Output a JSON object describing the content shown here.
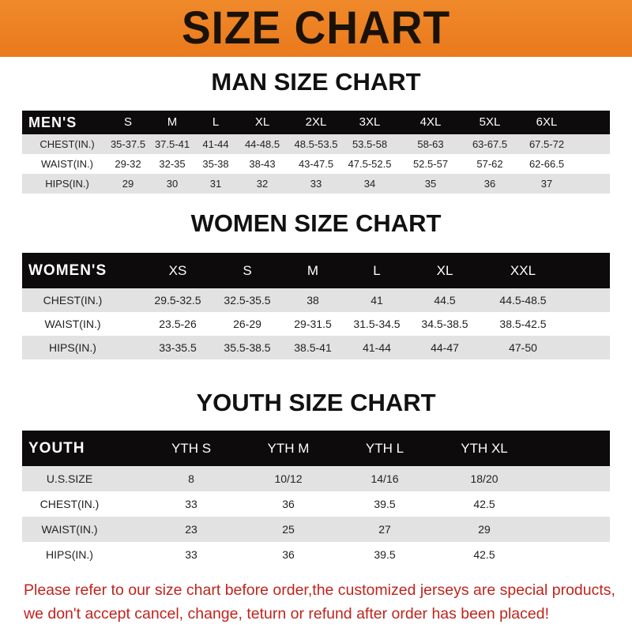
{
  "banner": {
    "title": "SIZE CHART",
    "color": "#ee8424"
  },
  "men": {
    "title": "MAN SIZE CHART",
    "header": [
      "MEN'S",
      "S",
      "M",
      "L",
      "XL",
      "2XL",
      "3XL",
      "4XL",
      "5XL",
      "6XL"
    ],
    "rows": [
      [
        "CHEST(IN.)",
        "35-37.5",
        "37.5-41",
        "41-44",
        "44-48.5",
        "48.5-53.5",
        "53.5-58",
        "58-63",
        "63-67.5",
        "67.5-72"
      ],
      [
        "WAIST(IN.)",
        "29-32",
        "32-35",
        "35-38",
        "38-43",
        "43-47.5",
        "47.5-52.5",
        "52.5-57",
        "57-62",
        "62-66.5"
      ],
      [
        "HIPS(IN.)",
        "29",
        "30",
        "31",
        "32",
        "33",
        "34",
        "35",
        "36",
        "37"
      ]
    ]
  },
  "women": {
    "title": "WOMEN SIZE CHART",
    "header": [
      "WOMEN'S",
      "XS",
      "S",
      "M",
      "L",
      "XL",
      "XXL"
    ],
    "rows": [
      [
        "CHEST(IN.)",
        "29.5-32.5",
        "32.5-35.5",
        "38",
        "41",
        "44.5",
        "44.5-48.5"
      ],
      [
        "WAIST(IN.)",
        "23.5-26",
        "26-29",
        "29-31.5",
        "31.5-34.5",
        "34.5-38.5",
        "38.5-42.5"
      ],
      [
        "HIPS(IN.)",
        "33-35.5",
        "35.5-38.5",
        "38.5-41",
        "41-44",
        "44-47",
        "47-50"
      ]
    ]
  },
  "youth": {
    "title": "YOUTH SIZE CHART",
    "header": [
      "YOUTH",
      "YTH S",
      "YTH M",
      "YTH L",
      "YTH XL"
    ],
    "rows": [
      [
        "U.S.SIZE",
        "8",
        "10/12",
        "14/16",
        "18/20"
      ],
      [
        "CHEST(IN.)",
        "33",
        "36",
        "39.5",
        "42.5"
      ],
      [
        "WAIST(IN.)",
        "23",
        "25",
        "27",
        "29"
      ],
      [
        "HIPS(IN.)",
        "33",
        "36",
        "39.5",
        "42.5"
      ]
    ]
  },
  "note": {
    "line1": "Please refer to our size chart before order,the customized jerseys are special products,",
    "line2": "we don't accept cancel, change, teturn or refund after order has been placed!",
    "color": "#c0241d"
  }
}
